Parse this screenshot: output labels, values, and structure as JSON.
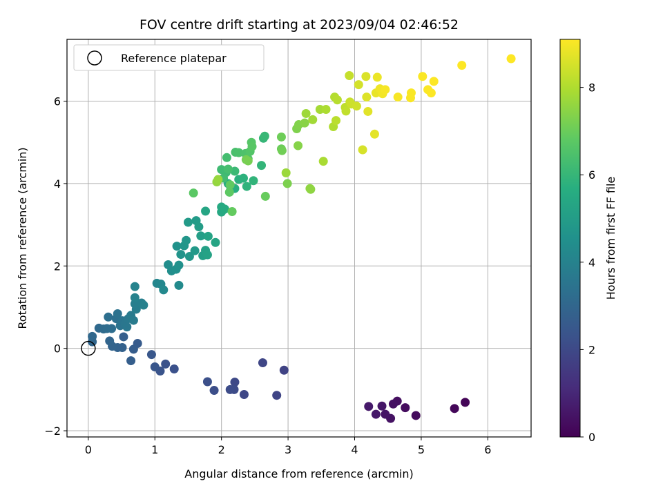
{
  "chart_data": {
    "type": "scatter",
    "title": "FOV centre drift starting at 2023/09/04 02:46:52",
    "xlabel": "Angular distance from reference (arcmin)",
    "ylabel": "Rotation from reference (arcmin)",
    "xlim": [
      -0.32,
      6.65
    ],
    "ylim": [
      -2.15,
      7.5
    ],
    "xticks": [
      0,
      1,
      2,
      3,
      4,
      5,
      6
    ],
    "yticks": [
      -2,
      0,
      2,
      4,
      6
    ],
    "grid": true,
    "legend": {
      "position": "top-left",
      "entries": [
        {
          "label": "Reference platepar",
          "marker": "open-circle"
        }
      ]
    },
    "reference_point": {
      "x": 0,
      "y": 0
    },
    "colorbar": {
      "label": "Hours from first FF file",
      "range": [
        0,
        9.1
      ],
      "ticks": [
        0,
        2,
        4,
        6,
        8
      ],
      "colormap": "viridis"
    },
    "point_color_source": "hours",
    "points": [
      {
        "x": 5.66,
        "y": -1.31,
        "h": 0.1
      },
      {
        "x": 5.5,
        "y": -1.46,
        "h": 0.15
      },
      {
        "x": 4.92,
        "y": -1.63,
        "h": 0.25
      },
      {
        "x": 4.76,
        "y": -1.44,
        "h": 0.3
      },
      {
        "x": 4.64,
        "y": -1.28,
        "h": 0.35
      },
      {
        "x": 4.58,
        "y": -1.35,
        "h": 0.4
      },
      {
        "x": 4.54,
        "y": -1.7,
        "h": 0.45
      },
      {
        "x": 4.46,
        "y": -1.6,
        "h": 0.5
      },
      {
        "x": 4.41,
        "y": -1.4,
        "h": 0.55
      },
      {
        "x": 4.32,
        "y": -1.6,
        "h": 0.6
      },
      {
        "x": 4.21,
        "y": -1.41,
        "h": 0.65
      },
      {
        "x": 2.94,
        "y": -0.53,
        "h": 1.8
      },
      {
        "x": 2.83,
        "y": -1.14,
        "h": 1.85
      },
      {
        "x": 2.62,
        "y": -0.35,
        "h": 1.9
      },
      {
        "x": 2.34,
        "y": -1.12,
        "h": 1.95
      },
      {
        "x": 2.2,
        "y": -0.82,
        "h": 2.0
      },
      {
        "x": 2.19,
        "y": -1.0,
        "h": 2.05
      },
      {
        "x": 2.13,
        "y": -1.0,
        "h": 2.1
      },
      {
        "x": 1.89,
        "y": -1.02,
        "h": 2.15
      },
      {
        "x": 1.79,
        "y": -0.81,
        "h": 2.2
      },
      {
        "x": 1.29,
        "y": -0.5,
        "h": 2.25
      },
      {
        "x": 1.16,
        "y": -0.38,
        "h": 2.3
      },
      {
        "x": 1.08,
        "y": -0.55,
        "h": 2.35
      },
      {
        "x": 1.0,
        "y": -0.45,
        "h": 2.4
      },
      {
        "x": 0.95,
        "y": -0.15,
        "h": 2.45
      },
      {
        "x": 0.74,
        "y": 0.12,
        "h": 2.6
      },
      {
        "x": 0.68,
        "y": -0.02,
        "h": 2.65
      },
      {
        "x": 0.64,
        "y": -0.3,
        "h": 2.7
      },
      {
        "x": 0.53,
        "y": 0.28,
        "h": 2.75
      },
      {
        "x": 0.51,
        "y": 0.02,
        "h": 2.8
      },
      {
        "x": 0.44,
        "y": 0.02,
        "h": 2.85
      },
      {
        "x": 0.36,
        "y": 0.05,
        "h": 2.9
      },
      {
        "x": 0.32,
        "y": 0.18,
        "h": 2.95
      },
      {
        "x": 0.06,
        "y": 0.16,
        "h": 3.0
      },
      {
        "x": 0.06,
        "y": 0.29,
        "h": 3.05
      },
      {
        "x": 0.16,
        "y": 0.49,
        "h": 3.1
      },
      {
        "x": 0.23,
        "y": 0.47,
        "h": 3.15
      },
      {
        "x": 0.28,
        "y": 0.48,
        "h": 3.2
      },
      {
        "x": 0.35,
        "y": 0.48,
        "h": 3.25
      },
      {
        "x": 0.3,
        "y": 0.76,
        "h": 3.3
      },
      {
        "x": 0.42,
        "y": 0.72,
        "h": 3.35
      },
      {
        "x": 0.44,
        "y": 0.84,
        "h": 3.4
      },
      {
        "x": 0.48,
        "y": 0.55,
        "h": 3.45
      },
      {
        "x": 0.51,
        "y": 0.67,
        "h": 3.5
      },
      {
        "x": 0.55,
        "y": 0.6,
        "h": 3.55
      },
      {
        "x": 0.58,
        "y": 0.52,
        "h": 3.6
      },
      {
        "x": 0.6,
        "y": 0.72,
        "h": 3.65
      },
      {
        "x": 0.64,
        "y": 0.8,
        "h": 3.7
      },
      {
        "x": 0.68,
        "y": 0.68,
        "h": 3.75
      },
      {
        "x": 0.72,
        "y": 0.95,
        "h": 3.8
      },
      {
        "x": 0.7,
        "y": 1.08,
        "h": 3.85
      },
      {
        "x": 0.8,
        "y": 1.1,
        "h": 3.9
      },
      {
        "x": 0.83,
        "y": 1.05,
        "h": 3.95
      },
      {
        "x": 0.7,
        "y": 1.23,
        "h": 4.0
      },
      {
        "x": 0.7,
        "y": 1.5,
        "h": 4.05
      },
      {
        "x": 1.03,
        "y": 1.58,
        "h": 4.15
      },
      {
        "x": 1.09,
        "y": 1.56,
        "h": 4.2
      },
      {
        "x": 1.13,
        "y": 1.42,
        "h": 4.25
      },
      {
        "x": 1.36,
        "y": 1.53,
        "h": 4.3
      },
      {
        "x": 1.2,
        "y": 2.03,
        "h": 4.4
      },
      {
        "x": 1.25,
        "y": 1.88,
        "h": 4.45
      },
      {
        "x": 1.32,
        "y": 1.92,
        "h": 4.5
      },
      {
        "x": 1.36,
        "y": 2.02,
        "h": 4.55
      },
      {
        "x": 1.33,
        "y": 2.48,
        "h": 4.6
      },
      {
        "x": 1.39,
        "y": 2.28,
        "h": 4.65
      },
      {
        "x": 1.44,
        "y": 2.49,
        "h": 4.7
      },
      {
        "x": 1.47,
        "y": 2.62,
        "h": 4.75
      },
      {
        "x": 1.52,
        "y": 2.23,
        "h": 4.8
      },
      {
        "x": 1.6,
        "y": 2.37,
        "h": 4.85
      },
      {
        "x": 1.5,
        "y": 3.06,
        "h": 4.9
      },
      {
        "x": 1.62,
        "y": 3.1,
        "h": 4.95
      },
      {
        "x": 1.66,
        "y": 2.95,
        "h": 5.0
      },
      {
        "x": 1.69,
        "y": 2.73,
        "h": 5.05
      },
      {
        "x": 1.72,
        "y": 2.25,
        "h": 5.1
      },
      {
        "x": 1.76,
        "y": 2.38,
        "h": 5.15
      },
      {
        "x": 1.79,
        "y": 2.27,
        "h": 5.2
      },
      {
        "x": 1.8,
        "y": 2.72,
        "h": 5.25
      },
      {
        "x": 1.91,
        "y": 2.57,
        "h": 5.3
      },
      {
        "x": 1.76,
        "y": 3.33,
        "h": 5.35
      },
      {
        "x": 2.0,
        "y": 3.31,
        "h": 5.45
      },
      {
        "x": 2.0,
        "y": 3.43,
        "h": 5.5
      },
      {
        "x": 2.05,
        "y": 3.38,
        "h": 5.55
      },
      {
        "x": 2.1,
        "y": 4.0,
        "h": 5.6
      },
      {
        "x": 2.14,
        "y": 3.9,
        "h": 5.65
      },
      {
        "x": 2.2,
        "y": 3.88,
        "h": 5.7
      },
      {
        "x": 2.26,
        "y": 4.1,
        "h": 5.75
      },
      {
        "x": 2.33,
        "y": 4.13,
        "h": 5.8
      },
      {
        "x": 2.38,
        "y": 3.93,
        "h": 5.85
      },
      {
        "x": 2.48,
        "y": 4.07,
        "h": 5.9
      },
      {
        "x": 2.6,
        "y": 4.44,
        "h": 5.95
      },
      {
        "x": 2.63,
        "y": 5.1,
        "h": 6.0
      },
      {
        "x": 2.65,
        "y": 5.15,
        "h": 6.05
      },
      {
        "x": 2.2,
        "y": 4.3,
        "h": 6.1
      },
      {
        "x": 2.07,
        "y": 4.27,
        "h": 6.15
      },
      {
        "x": 2.0,
        "y": 4.34,
        "h": 6.2
      },
      {
        "x": 2.03,
        "y": 4.13,
        "h": 6.25
      },
      {
        "x": 2.08,
        "y": 4.63,
        "h": 6.3
      },
      {
        "x": 2.1,
        "y": 4.35,
        "h": 6.35
      },
      {
        "x": 2.21,
        "y": 4.76,
        "h": 6.4
      },
      {
        "x": 2.26,
        "y": 4.75,
        "h": 6.45
      },
      {
        "x": 2.36,
        "y": 4.73,
        "h": 6.5
      },
      {
        "x": 2.4,
        "y": 4.6,
        "h": 6.55
      },
      {
        "x": 2.43,
        "y": 4.78,
        "h": 6.6
      },
      {
        "x": 2.45,
        "y": 5.0,
        "h": 6.65
      },
      {
        "x": 2.46,
        "y": 4.9,
        "h": 6.7
      },
      {
        "x": 1.58,
        "y": 3.77,
        "h": 6.75
      },
      {
        "x": 2.12,
        "y": 3.79,
        "h": 6.8
      },
      {
        "x": 2.13,
        "y": 3.97,
        "h": 6.85
      },
      {
        "x": 2.16,
        "y": 3.32,
        "h": 6.9
      },
      {
        "x": 2.66,
        "y": 3.69,
        "h": 6.95
      },
      {
        "x": 2.9,
        "y": 4.84,
        "h": 7.0
      },
      {
        "x": 2.9,
        "y": 5.13,
        "h": 7.05
      },
      {
        "x": 2.91,
        "y": 4.8,
        "h": 7.1
      },
      {
        "x": 2.37,
        "y": 4.58,
        "h": 7.15
      },
      {
        "x": 2.4,
        "y": 4.55,
        "h": 7.2
      },
      {
        "x": 2.99,
        "y": 4.0,
        "h": 7.25
      },
      {
        "x": 3.13,
        "y": 5.33,
        "h": 7.3
      },
      {
        "x": 3.16,
        "y": 5.43,
        "h": 7.35
      },
      {
        "x": 3.15,
        "y": 4.92,
        "h": 7.4
      },
      {
        "x": 3.25,
        "y": 5.47,
        "h": 7.45
      },
      {
        "x": 3.34,
        "y": 3.86,
        "h": 7.5
      },
      {
        "x": 3.33,
        "y": 3.88,
        "h": 7.55
      },
      {
        "x": 1.93,
        "y": 4.04,
        "h": 7.6
      },
      {
        "x": 1.95,
        "y": 4.1,
        "h": 7.65
      },
      {
        "x": 2.97,
        "y": 4.26,
        "h": 7.7
      },
      {
        "x": 3.27,
        "y": 5.7,
        "h": 7.75
      },
      {
        "x": 3.37,
        "y": 5.55,
        "h": 7.8
      },
      {
        "x": 3.48,
        "y": 5.8,
        "h": 7.85
      },
      {
        "x": 3.53,
        "y": 4.54,
        "h": 7.9
      },
      {
        "x": 3.57,
        "y": 5.8,
        "h": 7.95
      },
      {
        "x": 3.68,
        "y": 5.38,
        "h": 8.0
      },
      {
        "x": 3.7,
        "y": 6.1,
        "h": 8.05
      },
      {
        "x": 3.74,
        "y": 6.03,
        "h": 8.1
      },
      {
        "x": 3.72,
        "y": 5.53,
        "h": 8.15
      },
      {
        "x": 3.86,
        "y": 5.85,
        "h": 8.2
      },
      {
        "x": 3.87,
        "y": 5.76,
        "h": 8.25
      },
      {
        "x": 3.92,
        "y": 6.62,
        "h": 8.3
      },
      {
        "x": 3.93,
        "y": 5.98,
        "h": 8.35
      },
      {
        "x": 3.95,
        "y": 5.93,
        "h": 8.4
      },
      {
        "x": 4.03,
        "y": 5.88,
        "h": 8.45
      },
      {
        "x": 4.06,
        "y": 6.4,
        "h": 8.5
      },
      {
        "x": 4.12,
        "y": 4.82,
        "h": 8.55
      },
      {
        "x": 4.17,
        "y": 6.6,
        "h": 8.6
      },
      {
        "x": 4.18,
        "y": 6.1,
        "h": 8.65
      },
      {
        "x": 4.2,
        "y": 5.75,
        "h": 8.7
      },
      {
        "x": 4.3,
        "y": 5.2,
        "h": 8.75
      },
      {
        "x": 4.32,
        "y": 6.2,
        "h": 8.8
      },
      {
        "x": 4.34,
        "y": 6.58,
        "h": 8.85
      },
      {
        "x": 4.38,
        "y": 6.3,
        "h": 8.9
      },
      {
        "x": 4.42,
        "y": 6.18,
        "h": 8.95
      },
      {
        "x": 4.46,
        "y": 6.28,
        "h": 9.0
      },
      {
        "x": 4.65,
        "y": 6.1,
        "h": 9.02
      },
      {
        "x": 4.84,
        "y": 6.08,
        "h": 9.04
      },
      {
        "x": 4.85,
        "y": 6.2,
        "h": 9.05
      },
      {
        "x": 5.02,
        "y": 6.6,
        "h": 9.06
      },
      {
        "x": 5.1,
        "y": 6.28,
        "h": 9.07
      },
      {
        "x": 5.15,
        "y": 6.2,
        "h": 9.08
      },
      {
        "x": 5.19,
        "y": 6.48,
        "h": 9.09
      },
      {
        "x": 5.61,
        "y": 6.87,
        "h": 9.1
      },
      {
        "x": 6.35,
        "y": 7.03,
        "h": 9.1
      }
    ]
  }
}
